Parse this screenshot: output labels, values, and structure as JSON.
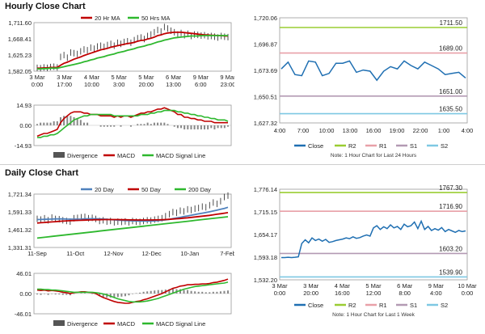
{
  "hourly": {
    "title": "Hourly Close Chart",
    "price": {
      "legend": [
        "20 Hr MA",
        "50 Hrs MA"
      ],
      "ylim": [
        1582.05,
        1711.6
      ],
      "yticks": [
        "1,711.60",
        "1,668.41",
        "1,625.23",
        "1,582.05"
      ],
      "xticks": [
        [
          "3 Mar",
          "0:00"
        ],
        [
          "3 Mar",
          "17:00"
        ],
        [
          "4 Mar",
          "10:00"
        ],
        [
          "5 Mar",
          "3:00"
        ],
        [
          "5 Mar",
          "20:00"
        ],
        [
          "6 Mar",
          "13:00"
        ],
        [
          "9 Mar",
          "6:00"
        ],
        [
          "9 Mar",
          "23:00"
        ]
      ],
      "close": [
        1591,
        1590,
        1592,
        1591,
        1593,
        1594,
        1592,
        1620,
        1625,
        1618,
        1632,
        1630,
        1628,
        1635,
        1640,
        1638,
        1645,
        1642,
        1648,
        1650,
        1647,
        1652,
        1655,
        1650,
        1658,
        1655,
        1660,
        1662,
        1658,
        1665,
        1670,
        1672,
        1668,
        1676,
        1680,
        1686,
        1692,
        1688,
        1700,
        1696,
        1690,
        1686,
        1680,
        1684,
        1678,
        1682,
        1676,
        1680,
        1679,
        1677,
        1678,
        1675,
        1676,
        1674,
        1672,
        1676,
        1674,
        1673
      ],
      "ma20": [
        1590,
        1590,
        1591,
        1591,
        1592,
        1592,
        1592,
        1598,
        1603,
        1606,
        1610,
        1614,
        1617,
        1620,
        1624,
        1627,
        1630,
        1633,
        1636,
        1639,
        1641,
        1643,
        1646,
        1648,
        1650,
        1652,
        1654,
        1656,
        1657,
        1659,
        1662,
        1664,
        1665,
        1668,
        1670,
        1673,
        1677,
        1679,
        1682,
        1684,
        1685,
        1686,
        1686,
        1686,
        1685,
        1684,
        1683,
        1682,
        1681,
        1680,
        1679,
        1679,
        1678,
        1678,
        1677,
        1677,
        1676,
        1676
      ],
      "ma50": [
        1588,
        1588,
        1589,
        1589,
        1590,
        1590,
        1590,
        1592,
        1594,
        1596,
        1598,
        1600,
        1602,
        1604,
        1607,
        1609,
        1612,
        1614,
        1617,
        1619,
        1621,
        1624,
        1626,
        1628,
        1631,
        1633,
        1635,
        1638,
        1640,
        1642,
        1645,
        1647,
        1649,
        1652,
        1654,
        1657,
        1660,
        1662,
        1665,
        1667,
        1669,
        1671,
        1672,
        1673,
        1674,
        1675,
        1676,
        1676,
        1676,
        1677,
        1677,
        1677,
        1677,
        1677,
        1677,
        1677,
        1677,
        1677
      ]
    },
    "macd": {
      "ylim": [
        -14.93,
        14.93
      ],
      "yticks": [
        "14.93",
        "0.00",
        "-14.93"
      ],
      "legend": [
        "Divergence",
        "MACD",
        "MACD Signal Line"
      ],
      "macd": [
        -8,
        -7,
        -6,
        -6,
        -5,
        -4,
        -3,
        2,
        5,
        7,
        9,
        10,
        10,
        10,
        9,
        9,
        8,
        8,
        8,
        7,
        7,
        7,
        7,
        6,
        7,
        6,
        7,
        7,
        6,
        7,
        8,
        9,
        9,
        10,
        10,
        11,
        12,
        12,
        13,
        12,
        11,
        10,
        8,
        8,
        6,
        6,
        5,
        5,
        4,
        4,
        3,
        3,
        3,
        2,
        2,
        2,
        2,
        2
      ],
      "signal": [
        -9,
        -9,
        -8,
        -8,
        -7,
        -7,
        -6,
        -4,
        -2,
        0,
        2,
        4,
        5,
        6,
        7,
        7,
        8,
        8,
        8,
        8,
        8,
        8,
        8,
        7,
        7,
        7,
        7,
        7,
        7,
        7,
        7,
        8,
        8,
        8,
        9,
        9,
        10,
        10,
        11,
        11,
        11,
        11,
        10,
        10,
        9,
        9,
        8,
        8,
        7,
        7,
        6,
        6,
        5,
        5,
        4,
        4,
        4,
        3
      ]
    },
    "line": {
      "ylim": [
        1627.32,
        1720.06
      ],
      "yticks": [
        "1,720.06",
        "1,696.87",
        "1,673.69",
        "1,650.51",
        "1,627.32"
      ],
      "xticks": [
        "4:00",
        "7:00",
        "10:00",
        "13:00",
        "16:00",
        "19:00",
        "22:00",
        "1:00",
        "4:00"
      ],
      "levels": [
        {
          "name": "R2",
          "value": 1711.5,
          "label": "1711.50",
          "color": "#9acd32"
        },
        {
          "name": "R1",
          "value": 1689.0,
          "label": "1689.00",
          "color": "#e8a0a8"
        },
        {
          "name": "S1",
          "value": 1651.0,
          "label": "1651.00",
          "color": "#b39ab3"
        },
        {
          "name": "S2",
          "value": 1635.5,
          "label": "1635.50",
          "color": "#7ec8e3"
        }
      ],
      "close": [
        1675,
        1681,
        1670,
        1669,
        1682,
        1681,
        1669,
        1671,
        1680,
        1680,
        1682,
        1672,
        1674,
        1673,
        1665,
        1673,
        1677,
        1675,
        1682,
        1678,
        1675,
        1681,
        1678,
        1675,
        1670,
        1671,
        1672,
        1667
      ],
      "legend": [
        "Close",
        "R2",
        "R1",
        "S1",
        "S2"
      ],
      "note": "Note: 1 Hour Chart for Last 24 Hours"
    }
  },
  "daily": {
    "title": "Daily Close Chart",
    "price": {
      "legend": [
        "20 Day",
        "50 Day",
        "200 Day"
      ],
      "ylim": [
        1331.31,
        1721.34
      ],
      "yticks": [
        "1,721.34",
        "1,591.33",
        "1,461.32",
        "1,331.31"
      ],
      "xticks": [
        "11-Sep",
        "11-Oct",
        "12-Nov",
        "12-Dec",
        "10-Jan",
        "7-Feb"
      ],
      "close": [
        1540,
        1535,
        1545,
        1530,
        1550,
        1540,
        1538,
        1530,
        1525,
        1520,
        1545,
        1548,
        1552,
        1555,
        1545,
        1548,
        1540,
        1525,
        1530,
        1520,
        1525,
        1515,
        1520,
        1518,
        1522,
        1515,
        1525,
        1520,
        1518,
        1525,
        1530,
        1528,
        1535,
        1540,
        1545,
        1560,
        1575,
        1590,
        1585,
        1600,
        1595,
        1610,
        1605,
        1615,
        1620,
        1630,
        1625,
        1640,
        1660,
        1650,
        1670,
        1700,
        1710
      ],
      "ma20": [
        1535,
        1536,
        1537,
        1538,
        1539,
        1540,
        1540,
        1540,
        1539,
        1538,
        1538,
        1538,
        1539,
        1540,
        1541,
        1541,
        1541,
        1540,
        1539,
        1537,
        1535,
        1533,
        1531,
        1529,
        1528,
        1527,
        1526,
        1525,
        1524,
        1524,
        1524,
        1525,
        1526,
        1528,
        1530,
        1533,
        1537,
        1542,
        1547,
        1552,
        1557,
        1562,
        1567,
        1572,
        1577,
        1582,
        1587,
        1592,
        1598,
        1604,
        1610,
        1617,
        1625
      ],
      "ma50": [
        1510,
        1512,
        1514,
        1516,
        1518,
        1520,
        1522,
        1524,
        1526,
        1527,
        1528,
        1529,
        1530,
        1531,
        1532,
        1533,
        1534,
        1534,
        1535,
        1535,
        1535,
        1535,
        1535,
        1534,
        1534,
        1533,
        1533,
        1532,
        1532,
        1532,
        1532,
        1532,
        1533,
        1533,
        1534,
        1535,
        1537,
        1539,
        1541,
        1543,
        1546,
        1548,
        1551,
        1554,
        1557,
        1560,
        1563,
        1566,
        1570,
        1574,
        1578,
        1582,
        1586
      ],
      "ma200": [
        1400,
        1403,
        1406,
        1409,
        1412,
        1415,
        1418,
        1421,
        1424,
        1427,
        1430,
        1433,
        1436,
        1439,
        1442,
        1445,
        1448,
        1451,
        1454,
        1457,
        1460,
        1463,
        1466,
        1469,
        1472,
        1475,
        1478,
        1481,
        1484,
        1487,
        1490,
        1493,
        1496,
        1499,
        1502,
        1505,
        1508,
        1511,
        1514,
        1517,
        1520,
        1523,
        1526,
        1529,
        1532,
        1535,
        1538,
        1541,
        1544,
        1547,
        1550,
        1553,
        1556
      ]
    },
    "macd": {
      "ylim": [
        -46.01,
        46.01
      ],
      "yticks": [
        "46.01",
        "0.00",
        "-46.01"
      ],
      "legend": [
        "Divergence",
        "MACD",
        "MACD Signal Line"
      ],
      "macd": [
        8,
        7,
        8,
        6,
        7,
        6,
        5,
        3,
        2,
        0,
        2,
        3,
        4,
        4,
        3,
        2,
        0,
        -5,
        -9,
        -12,
        -15,
        -18,
        -20,
        -21,
        -22,
        -22,
        -20,
        -18,
        -17,
        -14,
        -12,
        -9,
        -6,
        -3,
        0,
        4,
        8,
        12,
        14,
        17,
        18,
        20,
        20,
        21,
        21,
        22,
        22,
        23,
        25,
        26,
        28,
        30,
        33
      ],
      "signal": [
        10,
        10,
        9,
        9,
        8,
        8,
        7,
        6,
        5,
        4,
        3,
        3,
        3,
        3,
        3,
        3,
        2,
        1,
        -1,
        -3,
        -6,
        -9,
        -12,
        -14,
        -16,
        -18,
        -19,
        -19,
        -19,
        -18,
        -17,
        -15,
        -13,
        -11,
        -8,
        -5,
        -2,
        1,
        4,
        7,
        10,
        12,
        14,
        16,
        17,
        18,
        19,
        20,
        21,
        22,
        23,
        24,
        26
      ]
    },
    "line": {
      "ylim": [
        1532.2,
        1776.14
      ],
      "yticks": [
        "1,776.14",
        "1,715.15",
        "1,654.17",
        "1,593.18",
        "1,532.20"
      ],
      "xticks": [
        [
          "3 Mar",
          "0:00"
        ],
        [
          "3 Mar",
          "20:00"
        ],
        [
          "4 Mar",
          "16:00"
        ],
        [
          "5 Mar",
          "12:00"
        ],
        [
          "6 Mar",
          "8:00"
        ],
        [
          "9 Mar",
          "4:00"
        ],
        [
          "10 Mar",
          "0:00"
        ]
      ],
      "levels": [
        {
          "name": "R2",
          "value": 1767.3,
          "label": "1767.30",
          "color": "#9acd32"
        },
        {
          "name": "R1",
          "value": 1716.9,
          "label": "1716.90",
          "color": "#e8a0a8"
        },
        {
          "name": "S1",
          "value": 1603.2,
          "label": "1603.20",
          "color": "#b39ab3"
        },
        {
          "name": "S2",
          "value": 1539.9,
          "label": "1539.90",
          "color": "#7ec8e3"
        }
      ],
      "close": [
        1592,
        1592,
        1593,
        1592,
        1593,
        1594,
        1630,
        1640,
        1632,
        1645,
        1638,
        1642,
        1636,
        1641,
        1633,
        1635,
        1638,
        1640,
        1642,
        1645,
        1643,
        1648,
        1644,
        1646,
        1650,
        1653,
        1650,
        1672,
        1678,
        1668,
        1675,
        1670,
        1680,
        1672,
        1676,
        1668,
        1682,
        1675,
        1678,
        1688,
        1670,
        1690,
        1668,
        1676,
        1665,
        1670,
        1666,
        1673,
        1662,
        1668,
        1664,
        1660,
        1665,
        1662,
        1664
      ],
      "legend": [
        "Close",
        "R2",
        "R1",
        "S1",
        "S2"
      ],
      "note": "Note: 1 Hour Chart for Last 1 Week"
    }
  },
  "colors": {
    "close": "#1f6fb2",
    "bars": "#222222",
    "ma_red": "#c00000",
    "ma_green": "#2eb82e",
    "ma_blue": "#4f81bd",
    "macd_red": "#c00000",
    "signal_green": "#2eb82e",
    "divergence": "#888888",
    "axis": "#999999"
  }
}
